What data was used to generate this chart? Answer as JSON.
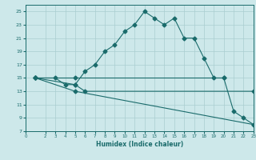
{
  "xlabel": "Humidex (Indice chaleur)",
  "background_color": "#cde8ea",
  "grid_color": "#aacdd0",
  "line_color": "#1a6b6b",
  "ylim": [
    7,
    26
  ],
  "xlim": [
    0,
    23
  ],
  "yticks": [
    7,
    9,
    11,
    13,
    15,
    17,
    19,
    21,
    23,
    25
  ],
  "xticks": [
    0,
    2,
    3,
    4,
    5,
    6,
    7,
    8,
    9,
    10,
    11,
    12,
    13,
    14,
    15,
    16,
    17,
    18,
    19,
    20,
    21,
    22,
    23
  ],
  "line1_x": [
    1,
    3,
    4,
    5,
    6,
    7,
    8,
    9,
    10,
    11,
    12,
    13,
    14,
    15,
    16,
    17,
    18,
    19,
    20,
    21,
    22,
    23
  ],
  "line1_y": [
    15,
    15,
    14,
    14,
    16,
    17,
    19,
    20,
    22,
    23,
    25,
    24,
    23,
    24,
    21,
    21,
    18,
    15,
    15,
    10,
    9,
    8
  ],
  "line2_x": [
    1,
    5,
    20
  ],
  "line2_y": [
    15,
    15,
    15
  ],
  "line3_x": [
    1,
    5,
    6,
    23
  ],
  "line3_y": [
    15,
    14,
    13,
    13
  ],
  "line4_x": [
    1,
    5,
    23
  ],
  "line4_y": [
    15,
    13,
    8
  ]
}
